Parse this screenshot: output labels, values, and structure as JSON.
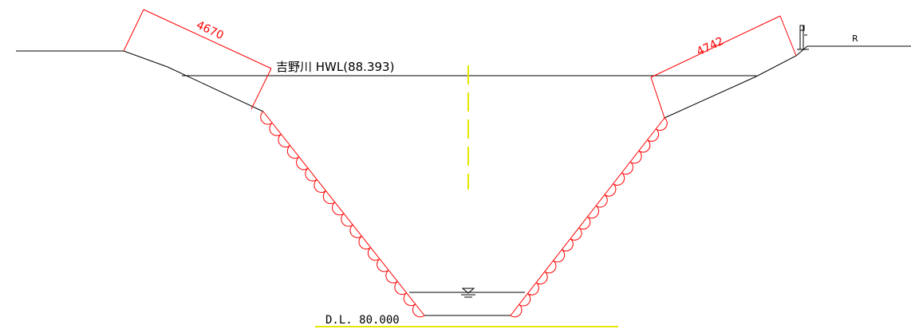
{
  "labels": {
    "hwl": "吉野川 HWL(88.393)",
    "datum": "D.L. 80.000",
    "right_marker": "R"
  },
  "dimensions": {
    "left_slope": "4670",
    "right_slope": "4742"
  },
  "colors": {
    "outline": "#000000",
    "dimension": "#ff0000",
    "centerline": "#e6e600",
    "datum_line": "#e6e600",
    "revetment": "#ff0000"
  }
}
